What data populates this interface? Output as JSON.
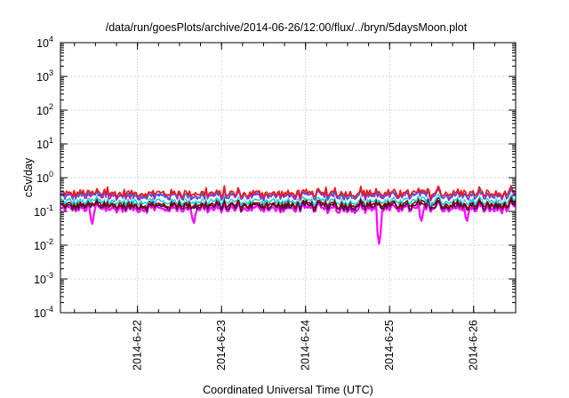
{
  "chart_data": {
    "type": "line",
    "title": "/data/run/goesPlots/archive/2014-06-26/12:00/flux/../bryn/5daysMoon.plot",
    "xlabel": "Coordinated Universal Time (UTC)",
    "ylabel": "cSv/day",
    "yscale": "log",
    "ylim": [
      0.0001,
      10000
    ],
    "xlim": [
      "2014-06-21 02:00",
      "2014-06-26 12:00"
    ],
    "grid": true,
    "legend": "none",
    "y_ticks": [
      {
        "base": "10",
        "exp": "-4",
        "value": 0.0001
      },
      {
        "base": "10",
        "exp": "-3",
        "value": 0.001
      },
      {
        "base": "10",
        "exp": "-2",
        "value": 0.01
      },
      {
        "base": "10",
        "exp": "-1",
        "value": 0.1
      },
      {
        "base": "10",
        "exp": "0",
        "value": 1
      },
      {
        "base": "10",
        "exp": "1",
        "value": 10
      },
      {
        "base": "10",
        "exp": "2",
        "value": 100
      },
      {
        "base": "10",
        "exp": "3",
        "value": 1000
      },
      {
        "base": "10",
        "exp": "4",
        "value": 10000
      }
    ],
    "x_ticks": [
      {
        "label": "2014-6-22",
        "date": "2014-06-22 00:00"
      },
      {
        "label": "2014-6-23",
        "date": "2014-06-23 00:00"
      },
      {
        "label": "2014-6-24",
        "date": "2014-06-24 00:00"
      },
      {
        "label": "2014-6-25",
        "date": "2014-06-25 00:00"
      },
      {
        "label": "2014-6-26",
        "date": "2014-06-26 00:00"
      }
    ],
    "series": [
      {
        "color": "#ff00ff",
        "level": 0.12,
        "dips": [
          [
            "2014-06-21 11:00",
            0.035
          ],
          [
            "2014-06-22 16:00",
            0.035
          ],
          [
            "2014-06-24 21:00",
            0.011
          ],
          [
            "2014-06-25 09:00",
            0.04
          ],
          [
            "2014-06-25 22:00",
            0.04
          ]
        ]
      },
      {
        "color": "#3a003a",
        "level": 0.14
      },
      {
        "color": "#8b0000",
        "level": 0.16
      },
      {
        "color": "#00d8e0",
        "level": 0.2
      },
      {
        "color": "#ffffff",
        "level": 0.24
      },
      {
        "color": "#c800c8",
        "level": 0.28
      },
      {
        "color": "#2a6fe0",
        "level": 0.3
      },
      {
        "color": "#ff1010",
        "level": 0.34
      }
    ]
  }
}
